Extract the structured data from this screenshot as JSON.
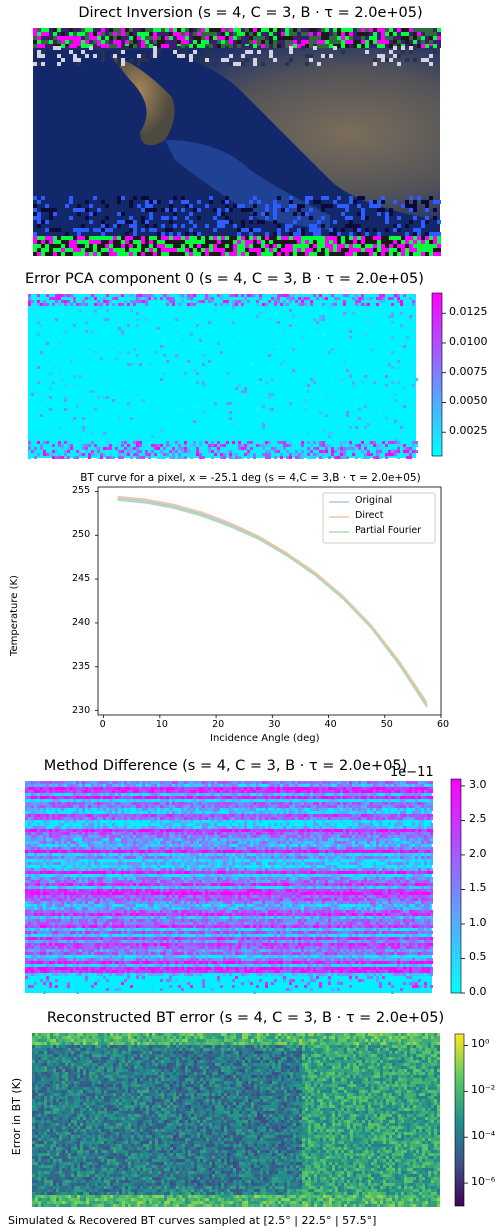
{
  "chart_data": [
    {
      "type": "heatmap",
      "title": "Direct Inversion (s = 4, C = 3, B · τ = 2.0e+05)",
      "colorbar": false
    },
    {
      "type": "heatmap",
      "title": "Error PCA component 0 (s = 4, C = 3, B · τ = 2.0e+05)",
      "colorbar": true,
      "colormap": [
        "#00ffff",
        "#ff00ff"
      ],
      "colorbar_ticks": [
        "0.0025",
        "0.0050",
        "0.0075",
        "0.0100",
        "0.0125"
      ],
      "colorbar_tick_values": [
        0.0025,
        0.005,
        0.0075,
        0.01,
        0.0125
      ],
      "colorbar_range": [
        0.0005,
        0.0142
      ]
    },
    {
      "type": "line",
      "title": "BT curve for a pixel, x = -25.1 deg (s = 4,C = 3,B · τ = 2.0e+05)",
      "xlabel": "Incidence Angle (deg)",
      "ylabel": "Temperature (K)",
      "xlim": [
        -1,
        60
      ],
      "ylim": [
        229.5,
        255.5
      ],
      "xticks": [
        0,
        10,
        20,
        30,
        40,
        50,
        60
      ],
      "yticks": [
        230,
        235,
        240,
        245,
        250,
        255
      ],
      "legend": "top-right",
      "x": [
        2.5,
        7.5,
        12.5,
        17.5,
        22.5,
        27.5,
        32.5,
        37.5,
        42.5,
        47.5,
        52.5,
        57.5
      ],
      "series": [
        {
          "name": "Original",
          "color": "#a6c8e6",
          "values": [
            254.2,
            253.9,
            253.3,
            252.4,
            251.2,
            249.8,
            247.9,
            245.7,
            243.0,
            239.6,
            235.5,
            230.6
          ]
        },
        {
          "name": "Direct",
          "color": "#f5c49a",
          "values": [
            254.4,
            254.1,
            253.5,
            252.6,
            251.4,
            249.9,
            248.0,
            245.8,
            243.1,
            239.8,
            235.7,
            230.9
          ]
        },
        {
          "name": "Partial Fourier",
          "color": "#b0d8b0",
          "values": [
            254.0,
            253.7,
            253.1,
            252.2,
            251.0,
            249.6,
            247.7,
            245.5,
            242.8,
            239.5,
            235.3,
            230.4
          ]
        }
      ]
    },
    {
      "type": "heatmap",
      "title": "Method Difference (s = 4, C = 3, B · τ = 2.0e+05)",
      "colorbar": true,
      "colorbar_offset_text": "1e−11",
      "colormap": [
        "#00ffff",
        "#ff00ff"
      ],
      "colorbar_ticks": [
        "0.0",
        "0.5",
        "1.0",
        "1.5",
        "2.0",
        "2.5",
        "3.0"
      ],
      "colorbar_tick_values": [
        0,
        0.5,
        1.0,
        1.5,
        2.0,
        2.5,
        3.0
      ],
      "colorbar_range": [
        0,
        3.1
      ]
    },
    {
      "type": "heatmap",
      "title": "Reconstructed BT error (s = 4, C = 3, B · τ = 2.0e+05)",
      "ylabel": "Error in BT (K)",
      "xlabel": "Simulated & Recovered BT curves sampled at [2.5° | 22.5° | 57.5°]",
      "colorbar": true,
      "colormap": "viridis",
      "colorbar_ticks": [
        "10⁰",
        "10⁻²",
        "10⁻⁴",
        "10⁻⁶"
      ],
      "colorbar_tick_exponents": [
        0,
        -2,
        -4,
        -6
      ],
      "colorbar_range_exponent": [
        -7,
        0.5
      ]
    }
  ]
}
